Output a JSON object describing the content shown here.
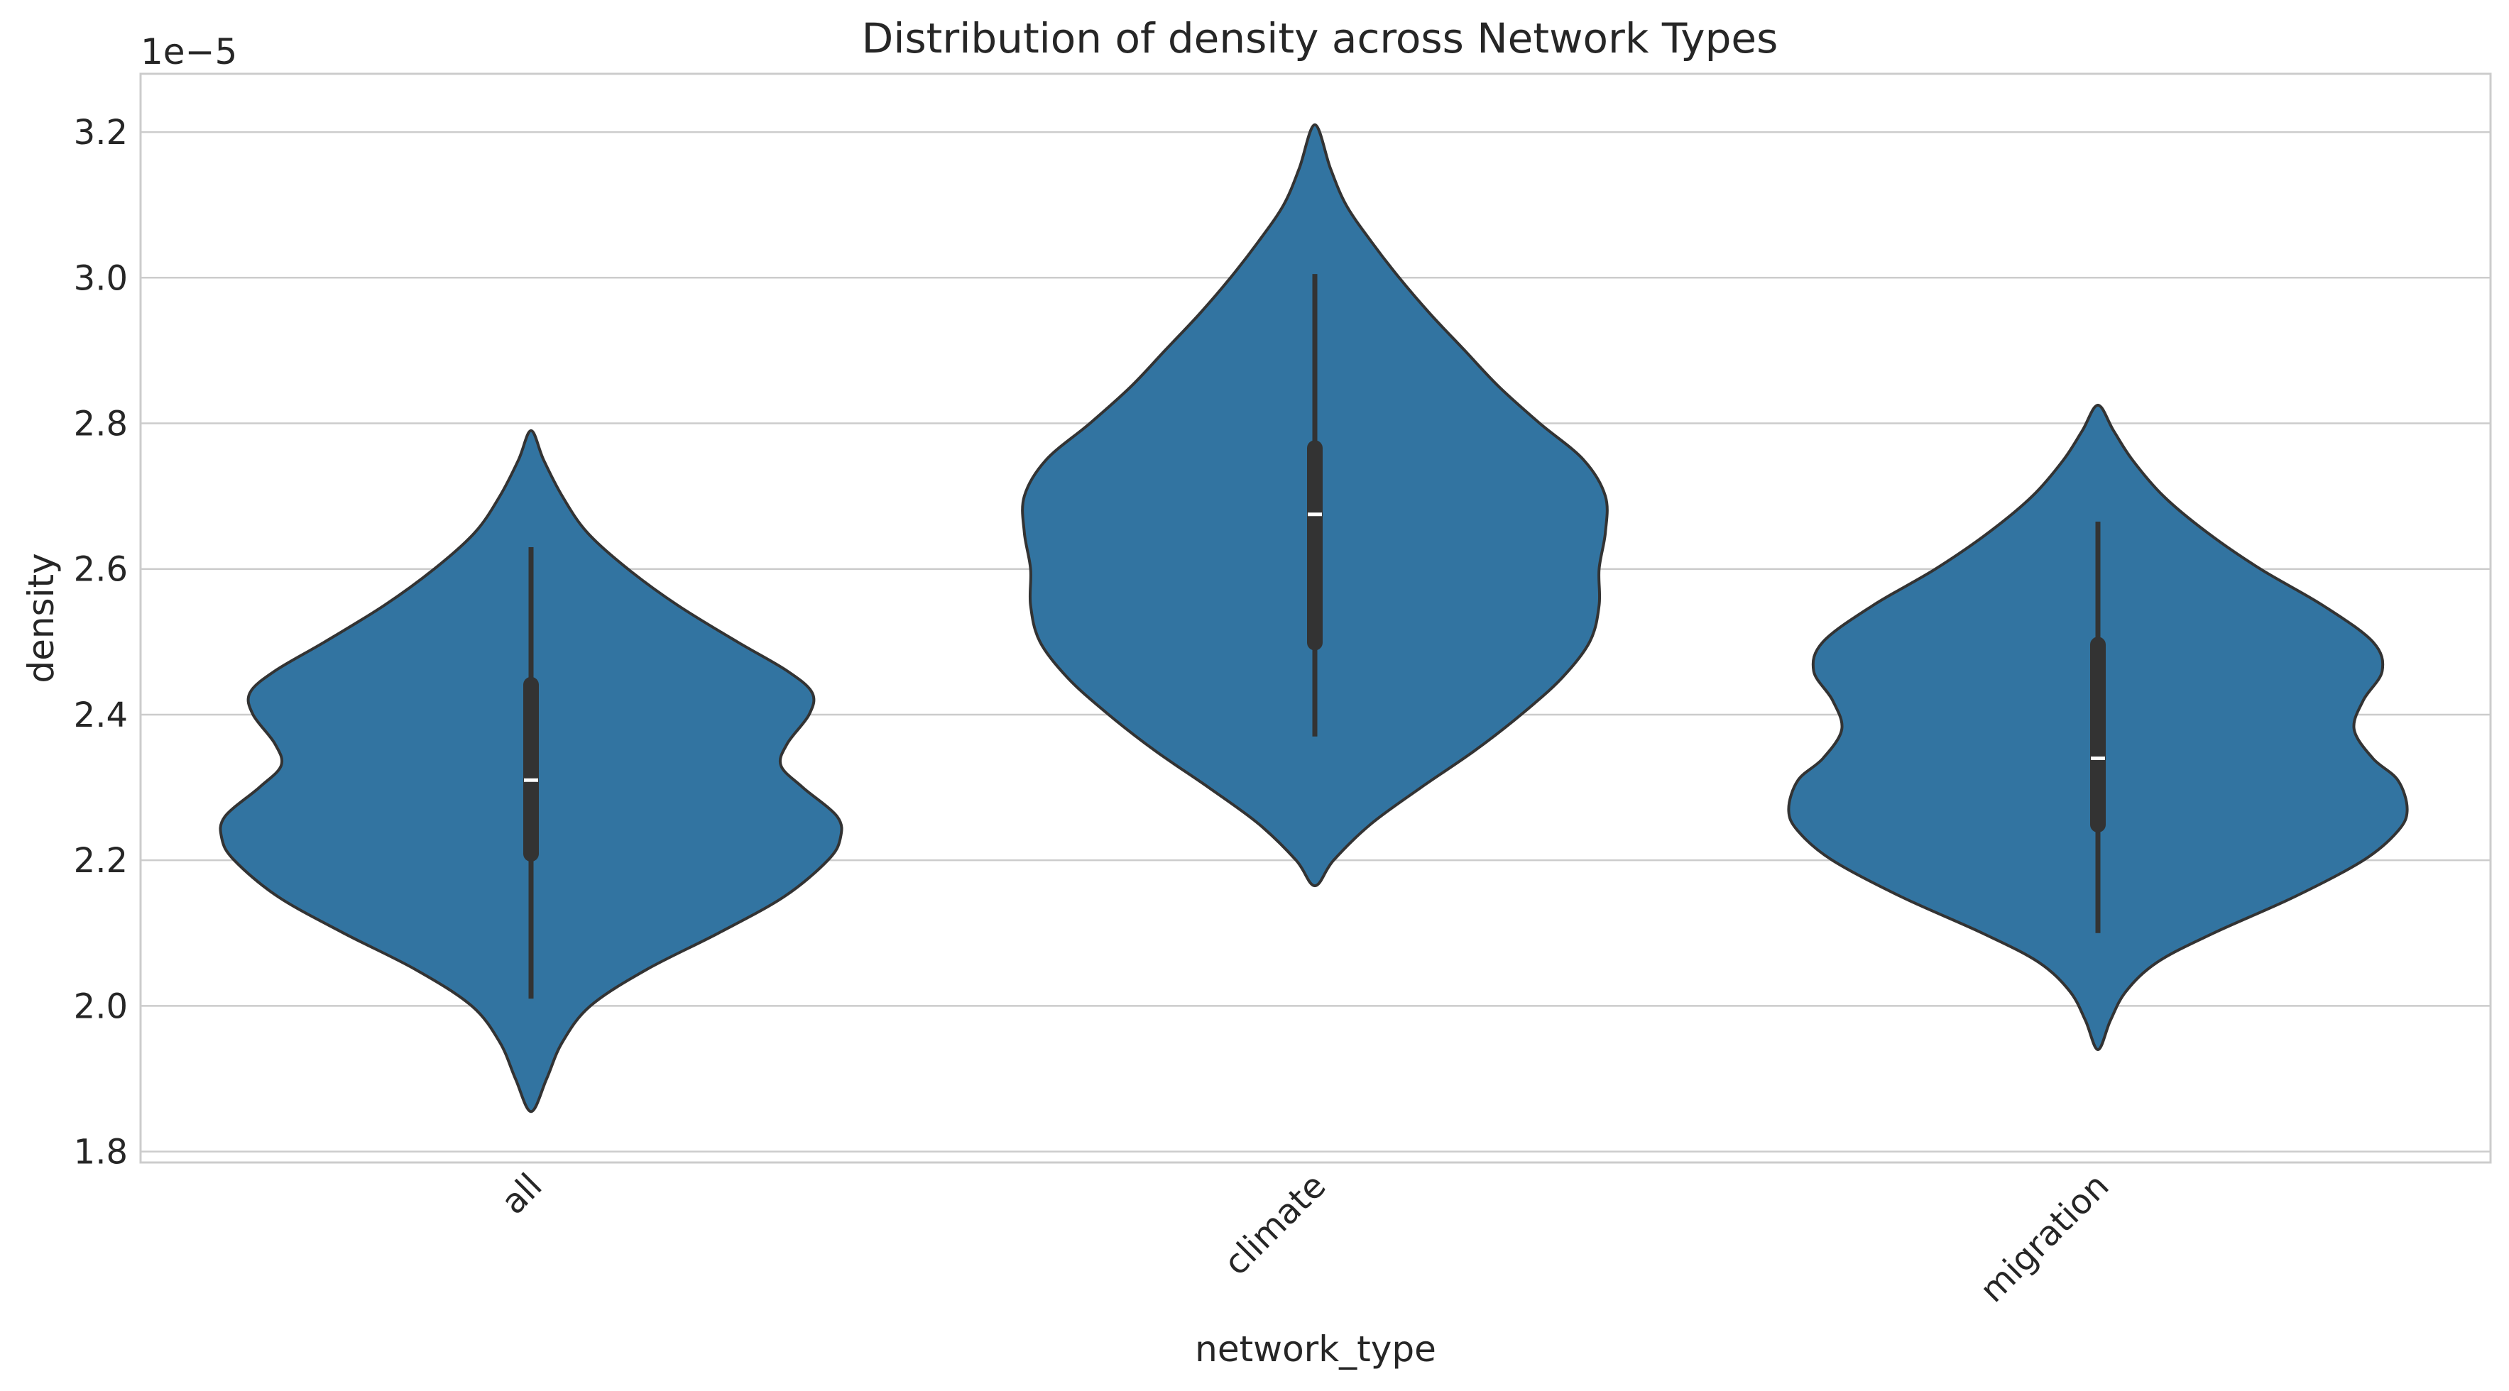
{
  "chart_data": {
    "type": "violin",
    "title": "Distribution of density across Network Types",
    "xlabel": "network_type",
    "ylabel": "density",
    "y_offset_label": "1e−5",
    "y_scale_factor": 1e-05,
    "ylim": [
      1.785,
      3.28
    ],
    "yticks": [
      1.8,
      2.0,
      2.2,
      2.4,
      2.6,
      2.8,
      3.0,
      3.2
    ],
    "ytick_labels": [
      "1.8",
      "2.0",
      "2.2",
      "2.4",
      "2.6",
      "2.8",
      "3.0",
      "3.2"
    ],
    "categories": [
      "all",
      "climate",
      "migration"
    ],
    "grid": "horizontal",
    "color": "#3274a1",
    "edge_color": "#333333",
    "series": [
      {
        "category": "all",
        "min": 2.01,
        "q1": 2.205,
        "median": 2.31,
        "q3": 2.445,
        "max": 2.63,
        "kde_bottom": 1.855,
        "kde_top": 2.79,
        "profile": [
          [
            1.855,
            0.0
          ],
          [
            1.9,
            0.05
          ],
          [
            1.95,
            0.1
          ],
          [
            2.0,
            0.19
          ],
          [
            2.05,
            0.37
          ],
          [
            2.1,
            0.6
          ],
          [
            2.15,
            0.81
          ],
          [
            2.2,
            0.95
          ],
          [
            2.23,
            0.99
          ],
          [
            2.26,
            0.98
          ],
          [
            2.3,
            0.87
          ],
          [
            2.33,
            0.8
          ],
          [
            2.36,
            0.82
          ],
          [
            2.4,
            0.89
          ],
          [
            2.43,
            0.9
          ],
          [
            2.46,
            0.82
          ],
          [
            2.5,
            0.66
          ],
          [
            2.55,
            0.47
          ],
          [
            2.6,
            0.31
          ],
          [
            2.65,
            0.18
          ],
          [
            2.7,
            0.1
          ],
          [
            2.75,
            0.04
          ],
          [
            2.79,
            0.0
          ]
        ]
      },
      {
        "category": "climate",
        "min": 2.37,
        "q1": 2.495,
        "median": 2.675,
        "q3": 2.77,
        "max": 3.005,
        "kde_bottom": 2.165,
        "kde_top": 3.21,
        "profile": [
          [
            2.165,
            0.0
          ],
          [
            2.2,
            0.06
          ],
          [
            2.25,
            0.18
          ],
          [
            2.3,
            0.34
          ],
          [
            2.35,
            0.51
          ],
          [
            2.4,
            0.66
          ],
          [
            2.45,
            0.79
          ],
          [
            2.5,
            0.88
          ],
          [
            2.55,
            0.91
          ],
          [
            2.6,
            0.91
          ],
          [
            2.65,
            0.93
          ],
          [
            2.7,
            0.93
          ],
          [
            2.75,
            0.86
          ],
          [
            2.8,
            0.72
          ],
          [
            2.85,
            0.59
          ],
          [
            2.9,
            0.48
          ],
          [
            2.95,
            0.37
          ],
          [
            3.0,
            0.27
          ],
          [
            3.05,
            0.18
          ],
          [
            3.1,
            0.1
          ],
          [
            3.15,
            0.05
          ],
          [
            3.21,
            0.0
          ]
        ]
      },
      {
        "category": "migration",
        "min": 2.1,
        "q1": 2.245,
        "median": 2.34,
        "q3": 2.5,
        "max": 2.665,
        "kde_bottom": 1.94,
        "kde_top": 2.825,
        "profile": [
          [
            1.94,
            0.0
          ],
          [
            1.98,
            0.04
          ],
          [
            2.02,
            0.09
          ],
          [
            2.06,
            0.19
          ],
          [
            2.1,
            0.37
          ],
          [
            2.15,
            0.63
          ],
          [
            2.2,
            0.85
          ],
          [
            2.24,
            0.96
          ],
          [
            2.27,
            0.99
          ],
          [
            2.31,
            0.96
          ],
          [
            2.34,
            0.88
          ],
          [
            2.38,
            0.82
          ],
          [
            2.42,
            0.85
          ],
          [
            2.46,
            0.91
          ],
          [
            2.5,
            0.88
          ],
          [
            2.55,
            0.72
          ],
          [
            2.6,
            0.52
          ],
          [
            2.65,
            0.35
          ],
          [
            2.7,
            0.21
          ],
          [
            2.75,
            0.11
          ],
          [
            2.79,
            0.05
          ],
          [
            2.825,
            0.0
          ]
        ]
      }
    ]
  }
}
